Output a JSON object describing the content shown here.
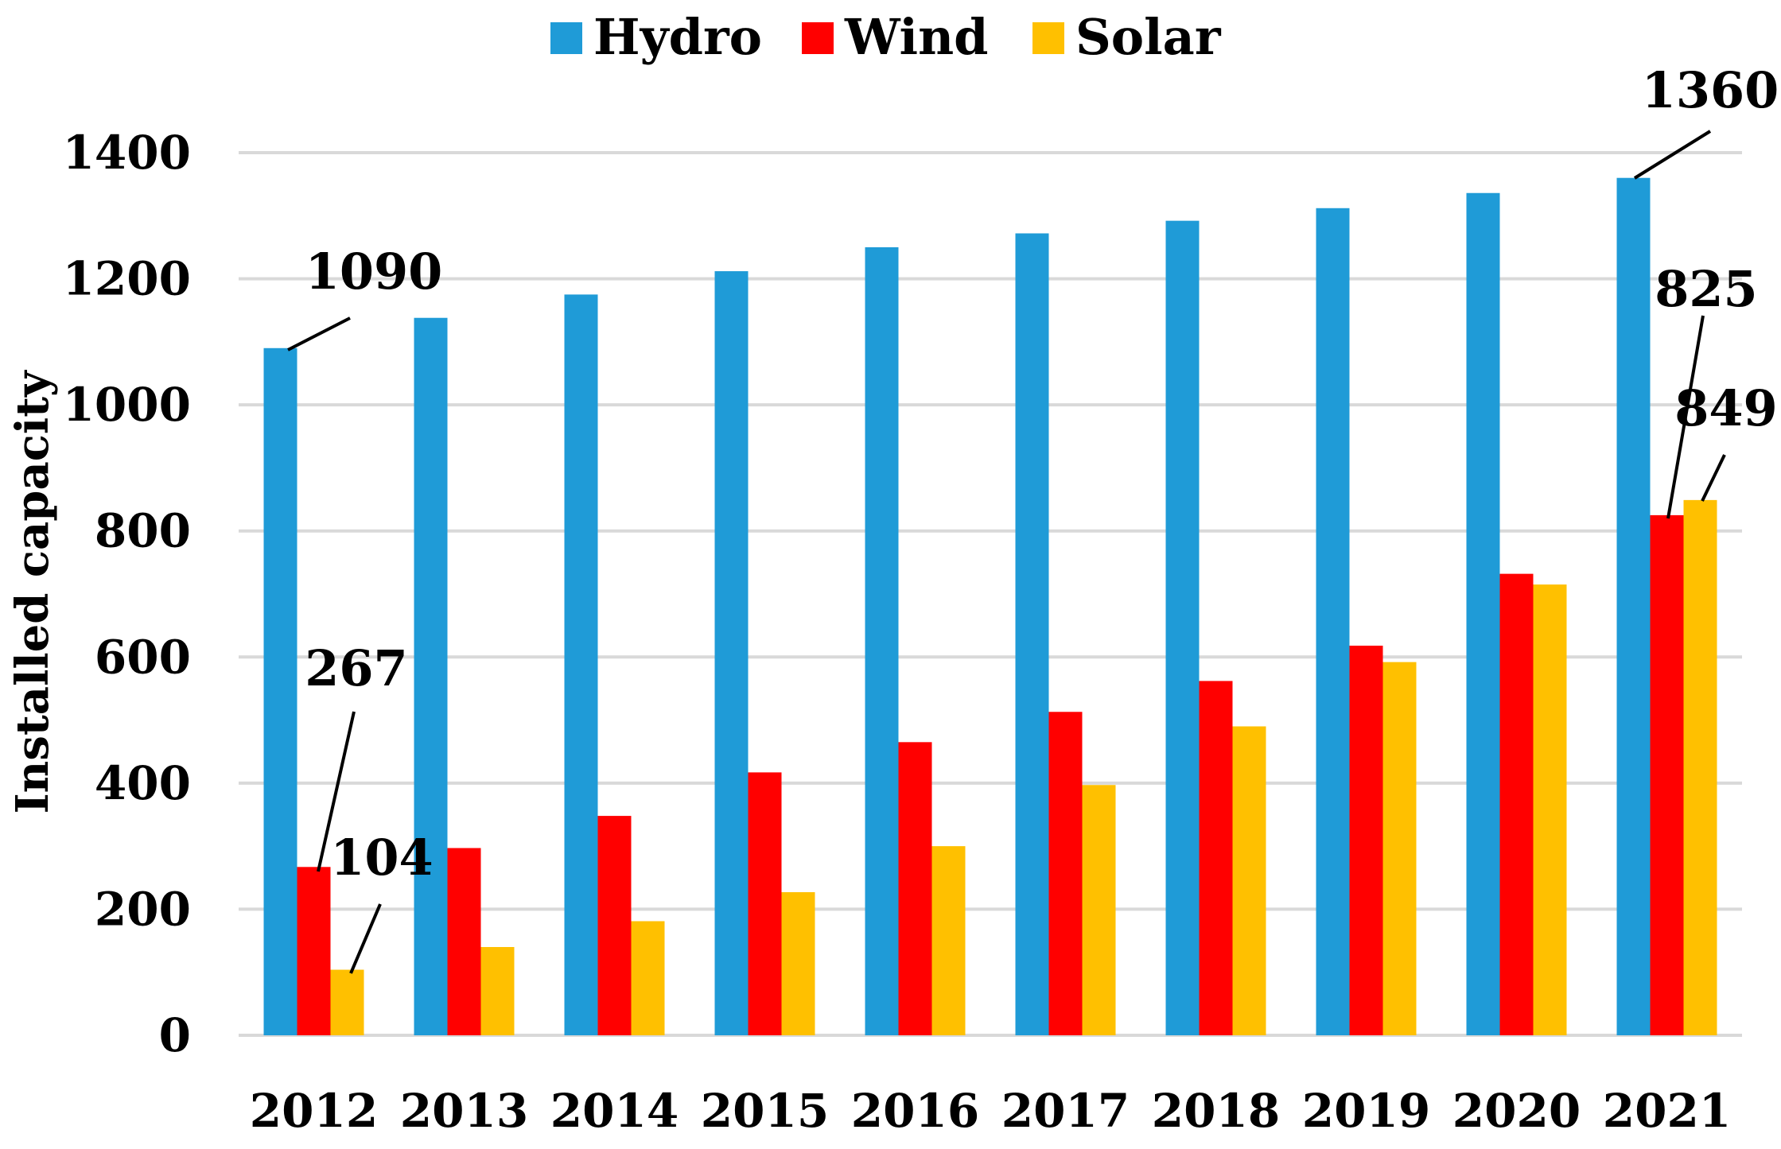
{
  "chart_data": {
    "type": "bar",
    "title": "",
    "xlabel": "",
    "ylabel": "Installed capacity",
    "ylim": [
      0,
      1400
    ],
    "yticks": [
      0,
      200,
      400,
      600,
      800,
      1000,
      1200,
      1400
    ],
    "grid": true,
    "legend_position": "top",
    "categories": [
      "2012",
      "2013",
      "2014",
      "2015",
      "2016",
      "2017",
      "2018",
      "2019",
      "2020",
      "2021"
    ],
    "series": [
      {
        "name": "Hydro",
        "color": "#1f9bd7",
        "values": [
          1090,
          1138,
          1175,
          1212,
          1250,
          1272,
          1292,
          1312,
          1336,
          1360
        ]
      },
      {
        "name": "Wind",
        "color": "#ff0000",
        "values": [
          267,
          297,
          348,
          417,
          465,
          513,
          562,
          618,
          732,
          825
        ]
      },
      {
        "name": "Solar",
        "color": "#ffc000",
        "values": [
          104,
          140,
          181,
          227,
          300,
          397,
          490,
          592,
          715,
          849
        ]
      }
    ],
    "annotations": [
      {
        "series": 0,
        "category": 0,
        "text": "1090"
      },
      {
        "series": 1,
        "category": 0,
        "text": "267"
      },
      {
        "series": 2,
        "category": 0,
        "text": "104"
      },
      {
        "series": 0,
        "category": 9,
        "text": "1360"
      },
      {
        "series": 1,
        "category": 9,
        "text": "825"
      },
      {
        "series": 2,
        "category": 9,
        "text": "849"
      }
    ]
  }
}
